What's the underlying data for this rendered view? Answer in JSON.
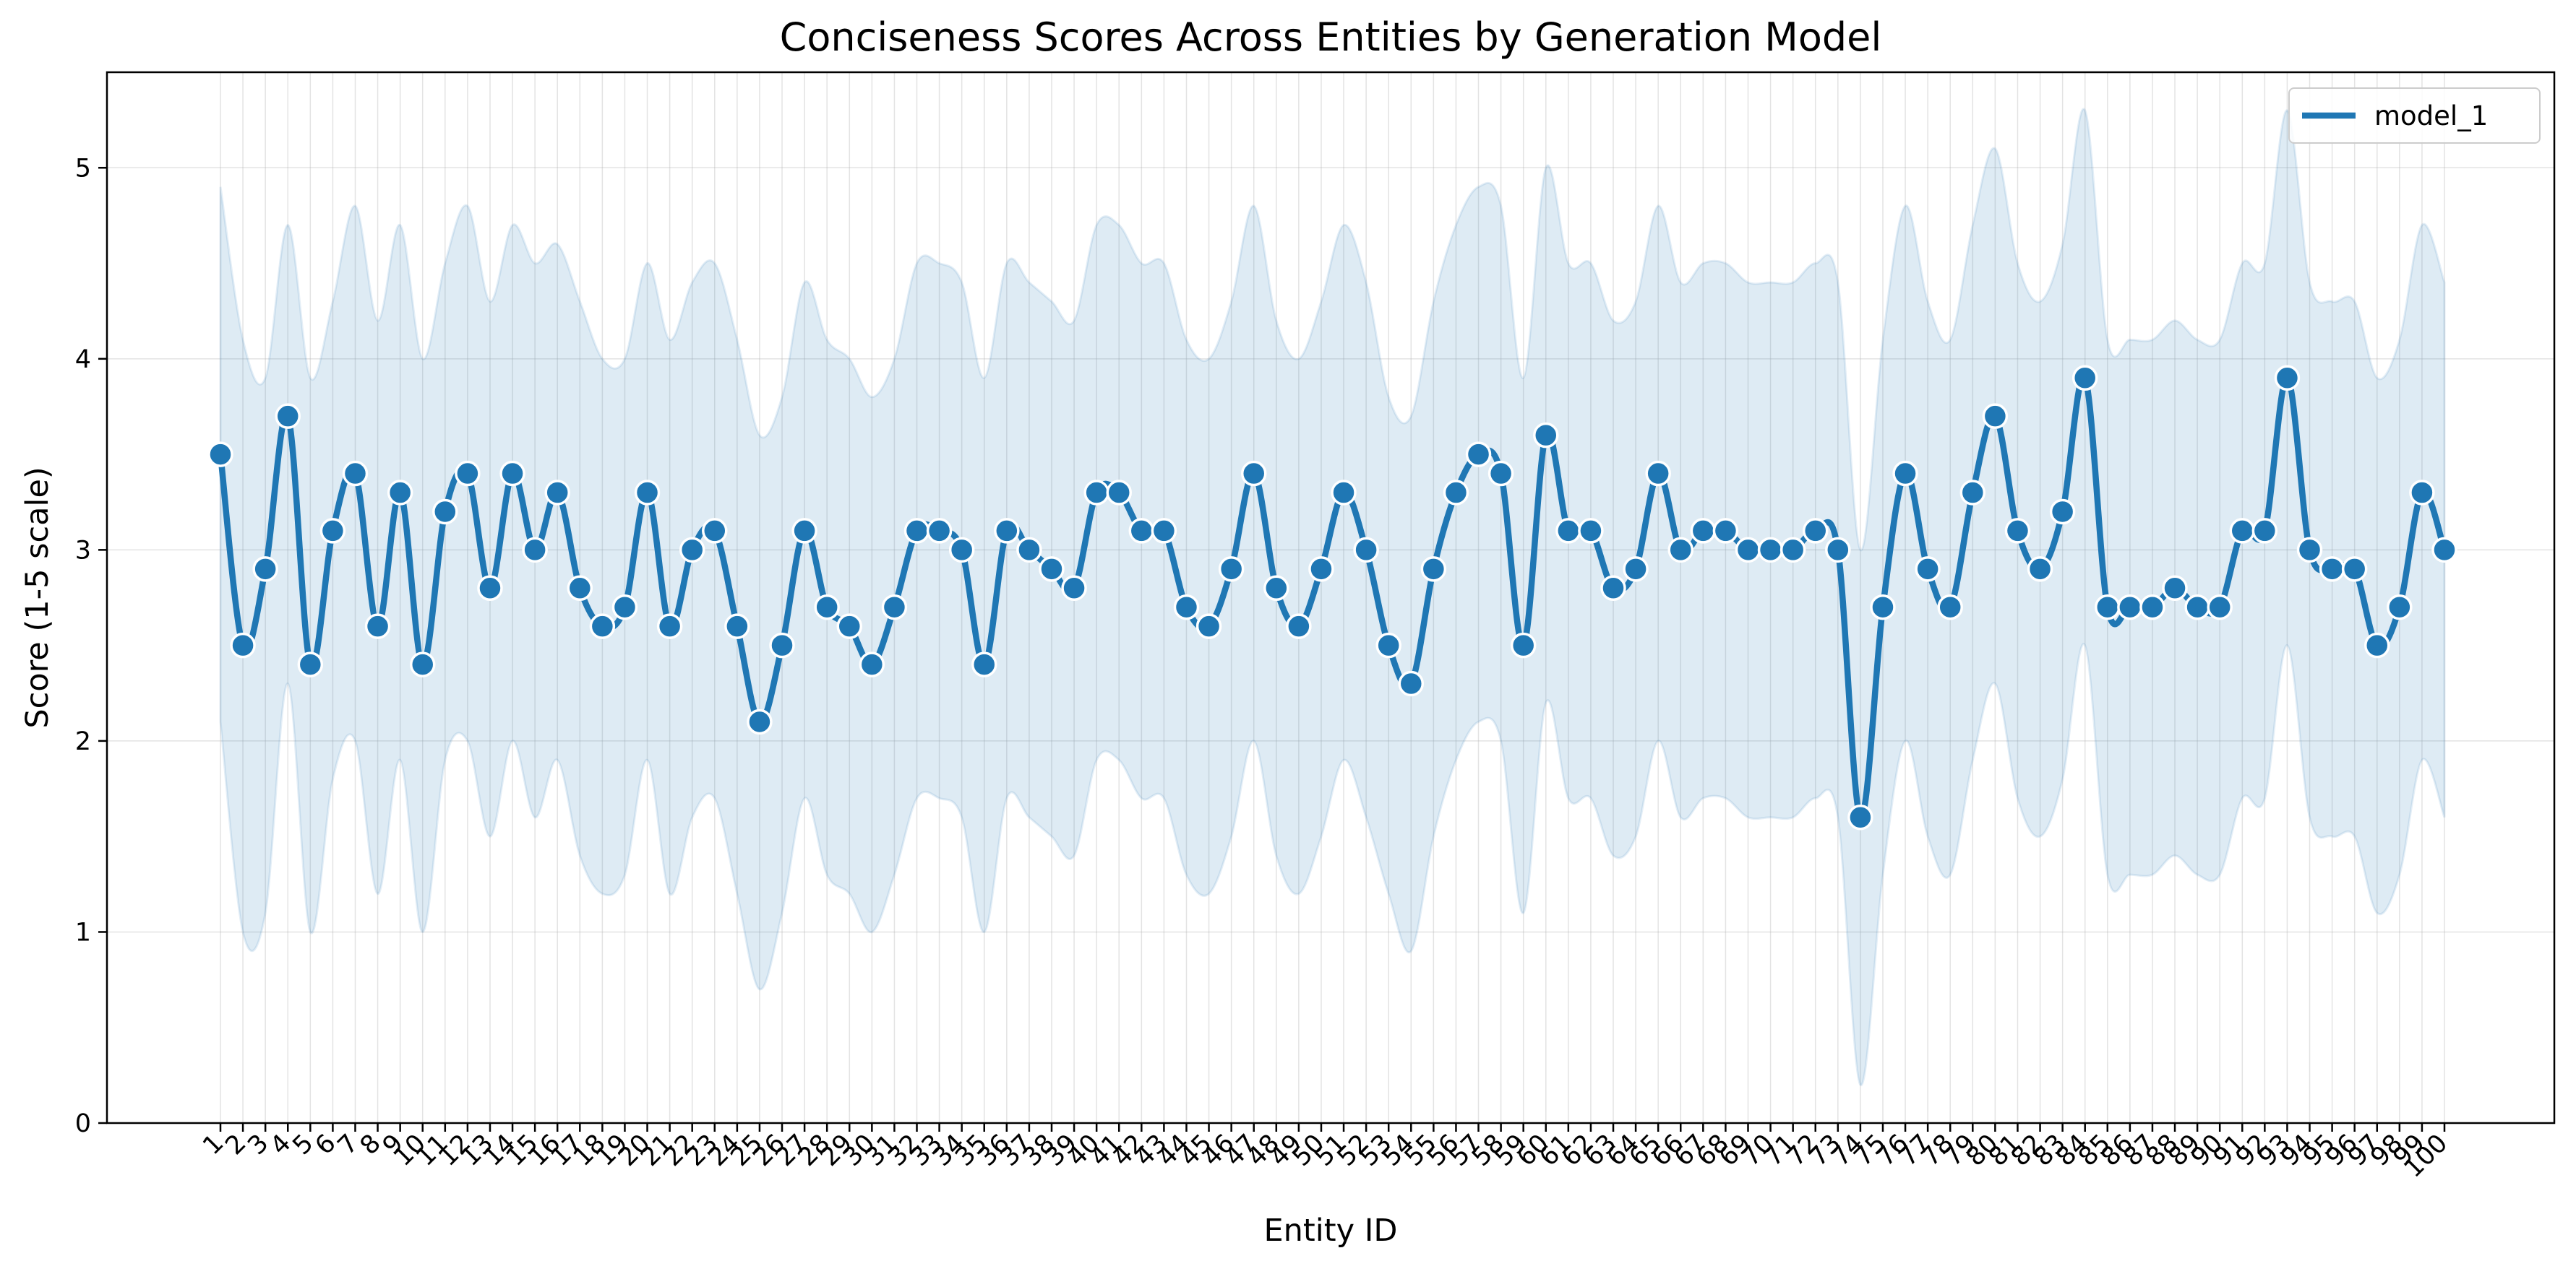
{
  "chart_data": {
    "type": "line",
    "title": "Conciseness Scores Across Entities by Generation Model",
    "xlabel": "Entity ID",
    "ylabel": "Score (1-5 scale)",
    "ylim": [
      0,
      5.5
    ],
    "yticks": [
      0,
      1,
      2,
      3,
      4,
      5
    ],
    "grid": true,
    "legend_position": "top-right",
    "x": [
      1,
      2,
      3,
      4,
      5,
      6,
      7,
      8,
      9,
      10,
      11,
      12,
      13,
      14,
      15,
      16,
      17,
      18,
      19,
      20,
      21,
      22,
      23,
      24,
      25,
      26,
      27,
      28,
      29,
      30,
      31,
      32,
      33,
      34,
      35,
      36,
      37,
      38,
      39,
      40,
      41,
      42,
      43,
      44,
      45,
      46,
      47,
      48,
      49,
      50,
      51,
      52,
      53,
      54,
      55,
      56,
      57,
      58,
      59,
      60,
      61,
      62,
      63,
      64,
      65,
      66,
      67,
      68,
      69,
      70,
      71,
      72,
      73,
      74,
      75,
      76,
      77,
      78,
      79,
      80,
      81,
      82,
      83,
      84,
      85,
      86,
      87,
      88,
      89,
      90,
      91,
      92,
      93,
      94,
      95,
      96,
      97,
      98,
      99,
      100
    ],
    "series": [
      {
        "name": "model_1",
        "color": "#1f77b4",
        "values": [
          3.5,
          2.5,
          2.9,
          3.7,
          2.4,
          3.1,
          3.4,
          2.6,
          3.3,
          2.4,
          3.2,
          3.4,
          2.8,
          3.4,
          3.0,
          3.3,
          2.8,
          2.6,
          2.7,
          3.3,
          2.6,
          3.0,
          3.1,
          2.6,
          2.1,
          2.5,
          3.1,
          2.7,
          2.6,
          2.4,
          2.7,
          3.1,
          3.1,
          3.0,
          2.4,
          3.1,
          3.0,
          2.9,
          2.8,
          3.3,
          3.3,
          3.1,
          3.1,
          2.7,
          2.6,
          2.9,
          3.4,
          2.8,
          2.6,
          2.9,
          3.3,
          3.0,
          2.5,
          2.3,
          2.9,
          3.3,
          3.5,
          3.4,
          2.5,
          3.6,
          3.1,
          3.1,
          2.8,
          2.9,
          3.4,
          3.0,
          3.1,
          3.1,
          3.0,
          3.0,
          3.0,
          3.1,
          3.0,
          1.6,
          2.7,
          3.4,
          2.9,
          2.7,
          3.3,
          3.7,
          3.1,
          2.9,
          3.2,
          3.9,
          2.7,
          2.7,
          2.7,
          2.8,
          2.7,
          2.7,
          3.1,
          3.1,
          3.9,
          3.0,
          2.9,
          2.9,
          2.5,
          2.7,
          3.3,
          3.0
        ],
        "upper": [
          4.9,
          4.1,
          3.9,
          4.7,
          3.9,
          4.3,
          4.8,
          4.2,
          4.7,
          4.0,
          4.5,
          4.8,
          4.3,
          4.7,
          4.5,
          4.6,
          4.3,
          4.0,
          4.0,
          4.5,
          4.1,
          4.4,
          4.5,
          4.1,
          3.6,
          3.8,
          4.4,
          4.1,
          4.0,
          3.8,
          4.0,
          4.5,
          4.5,
          4.4,
          3.9,
          4.5,
          4.4,
          4.3,
          4.2,
          4.7,
          4.7,
          4.5,
          4.5,
          4.1,
          4.0,
          4.3,
          4.8,
          4.2,
          4.0,
          4.3,
          4.7,
          4.4,
          3.8,
          3.7,
          4.3,
          4.7,
          4.9,
          4.8,
          3.9,
          5.0,
          4.5,
          4.5,
          4.2,
          4.3,
          4.8,
          4.4,
          4.5,
          4.5,
          4.4,
          4.4,
          4.4,
          4.5,
          4.4,
          3.0,
          4.1,
          4.8,
          4.3,
          4.1,
          4.7,
          5.1,
          4.5,
          4.3,
          4.6,
          5.3,
          4.1,
          4.1,
          4.1,
          4.2,
          4.1,
          4.1,
          4.5,
          4.5,
          5.3,
          4.4,
          4.3,
          4.3,
          3.9,
          4.1,
          4.7,
          4.4
        ],
        "lower": [
          2.1,
          1.0,
          1.1,
          2.3,
          1.0,
          1.8,
          2.0,
          1.2,
          1.9,
          1.0,
          1.9,
          2.0,
          1.5,
          2.0,
          1.6,
          1.9,
          1.4,
          1.2,
          1.3,
          1.9,
          1.2,
          1.6,
          1.7,
          1.2,
          0.7,
          1.1,
          1.7,
          1.3,
          1.2,
          1.0,
          1.3,
          1.7,
          1.7,
          1.6,
          1.0,
          1.7,
          1.6,
          1.5,
          1.4,
          1.9,
          1.9,
          1.7,
          1.7,
          1.3,
          1.2,
          1.5,
          2.0,
          1.4,
          1.2,
          1.5,
          1.9,
          1.6,
          1.2,
          0.9,
          1.5,
          1.9,
          2.1,
          2.0,
          1.1,
          2.2,
          1.7,
          1.7,
          1.4,
          1.5,
          2.0,
          1.6,
          1.7,
          1.7,
          1.6,
          1.6,
          1.6,
          1.7,
          1.6,
          0.2,
          1.3,
          2.0,
          1.5,
          1.3,
          1.9,
          2.3,
          1.7,
          1.5,
          1.8,
          2.5,
          1.3,
          1.3,
          1.3,
          1.4,
          1.3,
          1.3,
          1.7,
          1.7,
          2.5,
          1.6,
          1.5,
          1.5,
          1.1,
          1.3,
          1.9,
          1.6
        ]
      }
    ]
  }
}
